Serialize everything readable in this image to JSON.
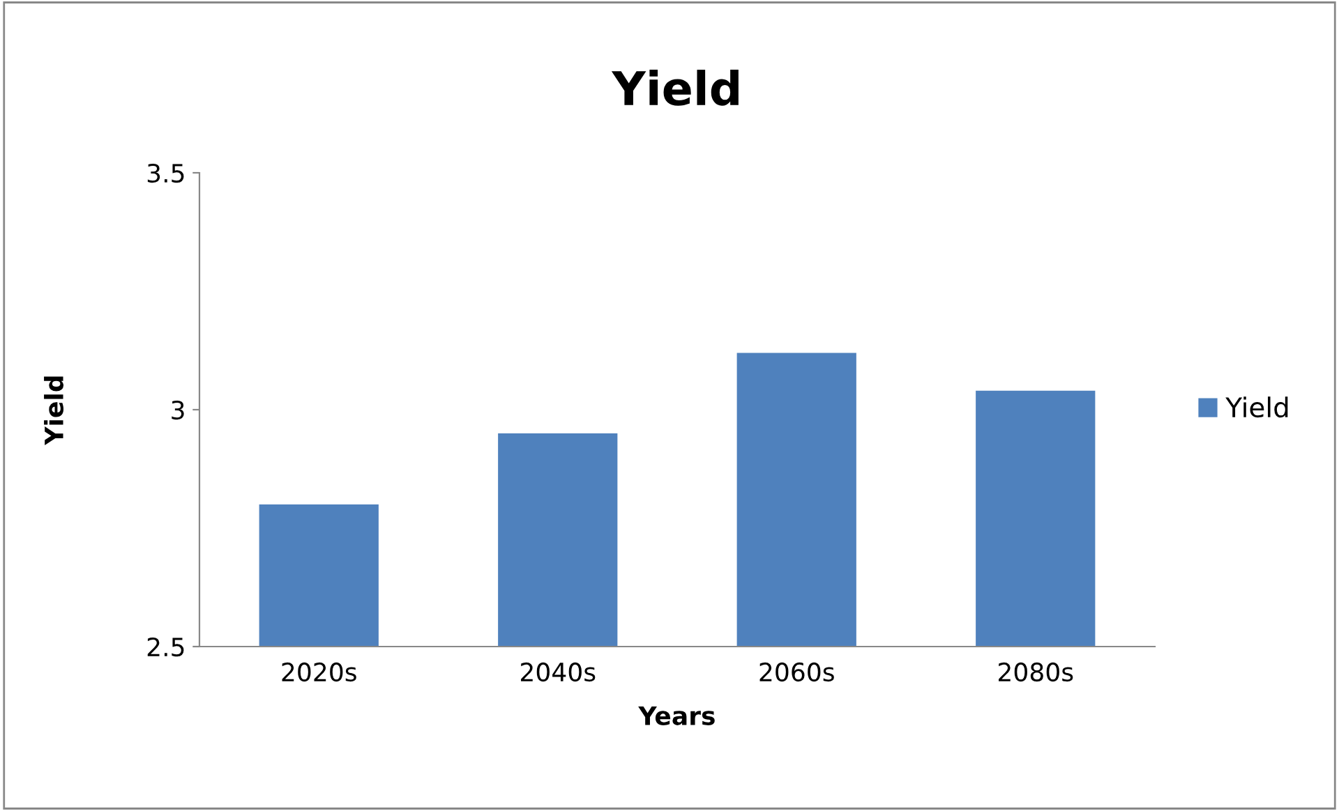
{
  "chart_data": {
    "type": "bar",
    "title": "Yield",
    "xlabel": "Years",
    "ylabel": "Yield",
    "categories": [
      "2020s",
      "2040s",
      "2060s",
      "2080s"
    ],
    "series": [
      {
        "name": "Yield",
        "color": "#4f81bd",
        "values": [
          2.8,
          2.95,
          3.12,
          3.04
        ]
      }
    ],
    "ylim": [
      2.5,
      3.5
    ],
    "yticks": [
      2.5,
      3,
      3.5
    ],
    "grid": false,
    "legend": "right"
  }
}
